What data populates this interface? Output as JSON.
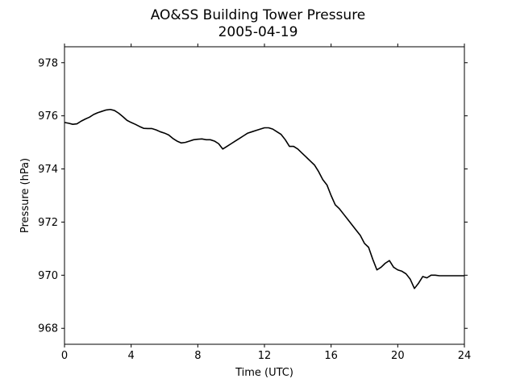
{
  "chart_data": {
    "type": "line",
    "title": "AO&SS Building Tower Pressure",
    "subtitle": "2005-04-19",
    "xlabel": "Time (UTC)",
    "ylabel": "Pressure (hPa)",
    "xlim": [
      0,
      24
    ],
    "ylim": [
      967.4,
      978.6
    ],
    "xticks": [
      0,
      4,
      8,
      12,
      16,
      20,
      24
    ],
    "yticks": [
      968,
      970,
      972,
      974,
      976,
      978
    ],
    "grid": false,
    "line_color": "#000000",
    "series": [
      {
        "x": [
          0.0,
          0.25,
          0.5,
          0.75,
          1.0,
          1.25,
          1.5,
          1.75,
          2.0,
          2.25,
          2.5,
          2.75,
          3.0,
          3.25,
          3.5,
          3.75,
          4.0,
          4.25,
          4.5,
          4.75,
          5.0,
          5.25,
          5.5,
          5.75,
          6.0,
          6.25,
          6.5,
          6.75,
          7.0,
          7.25,
          7.5,
          7.75,
          8.0,
          8.25,
          8.5,
          8.75,
          9.0,
          9.25,
          9.5,
          9.75,
          10.0,
          10.25,
          10.5,
          10.75,
          11.0,
          11.25,
          11.5,
          11.75,
          12.0,
          12.25,
          12.5,
          12.75,
          13.0,
          13.25,
          13.5,
          13.75,
          14.0,
          14.25,
          14.5,
          14.75,
          15.0,
          15.25,
          15.5,
          15.75,
          16.0,
          16.25,
          16.5,
          16.75,
          17.0,
          17.25,
          17.5,
          17.75,
          18.0,
          18.25,
          18.5,
          18.75,
          19.0,
          19.25,
          19.5,
          19.75,
          20.0,
          20.25,
          20.5,
          20.75,
          21.0,
          21.25,
          21.5,
          21.75,
          22.0,
          22.25,
          22.5,
          22.75,
          23.0,
          23.25,
          23.5,
          23.75,
          24.0
        ],
        "values": [
          975.75,
          975.72,
          975.68,
          975.7,
          975.8,
          975.88,
          975.95,
          976.05,
          976.12,
          976.17,
          976.22,
          976.24,
          976.2,
          976.1,
          975.97,
          975.83,
          975.75,
          975.68,
          975.6,
          975.53,
          975.52,
          975.52,
          975.47,
          975.4,
          975.35,
          975.28,
          975.15,
          975.05,
          974.98,
          975.0,
          975.05,
          975.1,
          975.12,
          975.13,
          975.1,
          975.1,
          975.05,
          974.95,
          974.75,
          974.85,
          974.95,
          975.05,
          975.15,
          975.25,
          975.35,
          975.4,
          975.45,
          975.5,
          975.55,
          975.55,
          975.5,
          975.4,
          975.3,
          975.1,
          974.85,
          974.85,
          974.75,
          974.6,
          974.45,
          974.3,
          974.15,
          973.9,
          973.6,
          973.4,
          973.0,
          972.65,
          972.5,
          972.3,
          972.1,
          971.9,
          971.7,
          971.5,
          971.2,
          971.05,
          970.6,
          970.2,
          970.3,
          970.45,
          970.55,
          970.3,
          970.2,
          970.15,
          970.05,
          969.85,
          969.5,
          969.7,
          969.95,
          969.9,
          970.0,
          970.0,
          969.98,
          969.98,
          969.98,
          969.98,
          969.98,
          969.98,
          969.98
        ]
      }
    ]
  }
}
